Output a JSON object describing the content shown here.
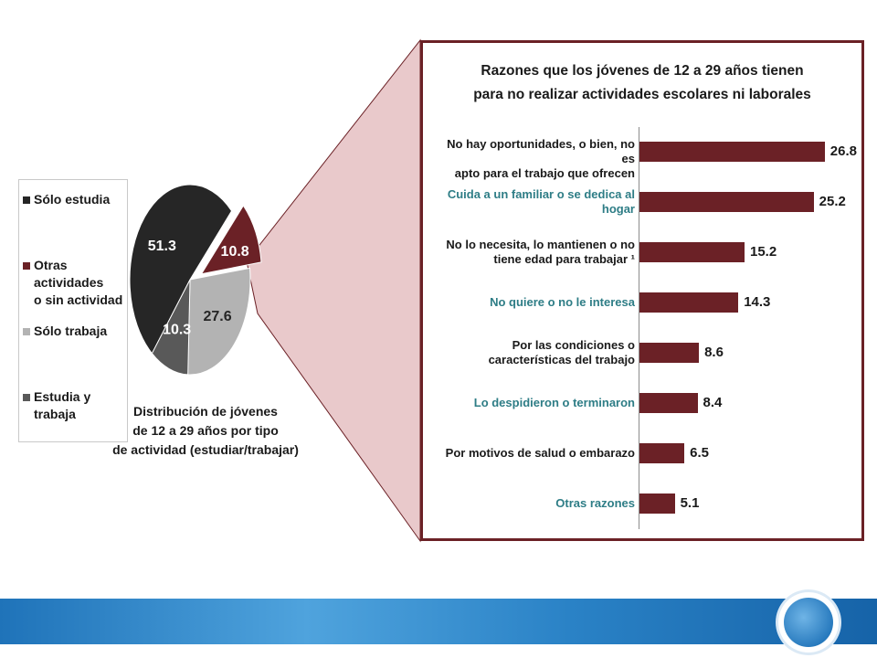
{
  "pie": {
    "slices": [
      {
        "label": "Sólo estudia",
        "value": 51.3,
        "display": "51.3",
        "color": "#262626",
        "text_color": "#ffffff"
      },
      {
        "label": "Otras actividades o sin actividad",
        "value": 10.8,
        "display": "10.8",
        "color": "#6b2126",
        "text_color": "#ffffff"
      },
      {
        "label": "Sólo trabaja",
        "value": 27.6,
        "display": "27.6",
        "color": "#b3b3b3",
        "text_color": "#262626"
      },
      {
        "label": "Estudia y trabaja",
        "value": 10.3,
        "display": "10.3",
        "color": "#595959",
        "text_color": "#ffffff"
      }
    ],
    "legend": [
      "Sólo estudia",
      "Otras actividades\no sin actividad",
      "Sólo trabaja",
      "Estudia y trabaja"
    ],
    "caption": "Distribución de jóvenes\nde 12 a 29 años por tipo\nde actividad (estudiar/trabajar)"
  },
  "chart_data": [
    {
      "type": "pie",
      "categories": [
        "Sólo estudia",
        "Otras actividades o sin actividad",
        "Sólo trabaja",
        "Estudia y trabaja"
      ],
      "values": [
        51.3,
        10.8,
        27.6,
        10.3
      ],
      "title": "Distribución de jóvenes de 12 a 29 años por tipo de actividad (estudiar/trabajar)"
    },
    {
      "type": "bar",
      "orientation": "horizontal",
      "title": "Razones que los jóvenes de 12 a 29 años tienen para no realizar actividades escolares ni laborales",
      "categories": [
        "No hay oportunidades, o bien, no es apto para el trabajo que ofrecen",
        "Cuida a un familiar o se dedica al hogar",
        "No lo necesita, lo mantienen o no tiene edad para trabajar 1",
        "No quiere o no le interesa",
        "Por las condiciones o características del trabajo",
        "Lo despidieron o terminaron",
        "Por motivos de salud o embarazo",
        "Otras razones"
      ],
      "values": [
        26.8,
        25.2,
        15.2,
        14.3,
        8.6,
        8.4,
        6.5,
        5.1
      ],
      "xlim": [
        0,
        30
      ],
      "grid": false
    }
  ],
  "bars": {
    "title": "Razones que los jóvenes de 12 a 29 años tienen\npara no realizar actividades escolares ni laborales",
    "items": [
      {
        "label": "No hay oportunidades, o bien, no es\napto para el trabajo que ofrecen",
        "value": 26.8,
        "display": "26.8",
        "color": "dark"
      },
      {
        "label": "Cuida a un familiar  o se dedica al\nhogar",
        "value": 25.2,
        "display": "25.2",
        "color": "teal"
      },
      {
        "label": "No lo necesita, lo mantienen o no\ntiene edad para trabajar ¹",
        "value": 15.2,
        "display": "15.2",
        "color": "dark"
      },
      {
        "label": "No quiere o no le interesa",
        "value": 14.3,
        "display": "14.3",
        "color": "teal"
      },
      {
        "label": "Por las condiciones o\ncaracterísticas del trabajo",
        "value": 8.6,
        "display": "8.6",
        "color": "dark"
      },
      {
        "label": "Lo despidieron o terminaron",
        "value": 8.4,
        "display": "8.4",
        "color": "teal"
      },
      {
        "label": "Por motivos de salud o embarazo",
        "value": 6.5,
        "display": "6.5",
        "color": "dark"
      },
      {
        "label": "Otras razones",
        "value": 5.1,
        "display": "5.1",
        "color": "teal"
      }
    ]
  },
  "colors": {
    "bar": "#6b2126",
    "frame": "#6b2126",
    "connector": "#e9c9cb",
    "teal_label": "#2e7d86",
    "footer": "#1f73b9"
  },
  "footer": {
    "emblem_icon": "americas-globe-icon"
  }
}
